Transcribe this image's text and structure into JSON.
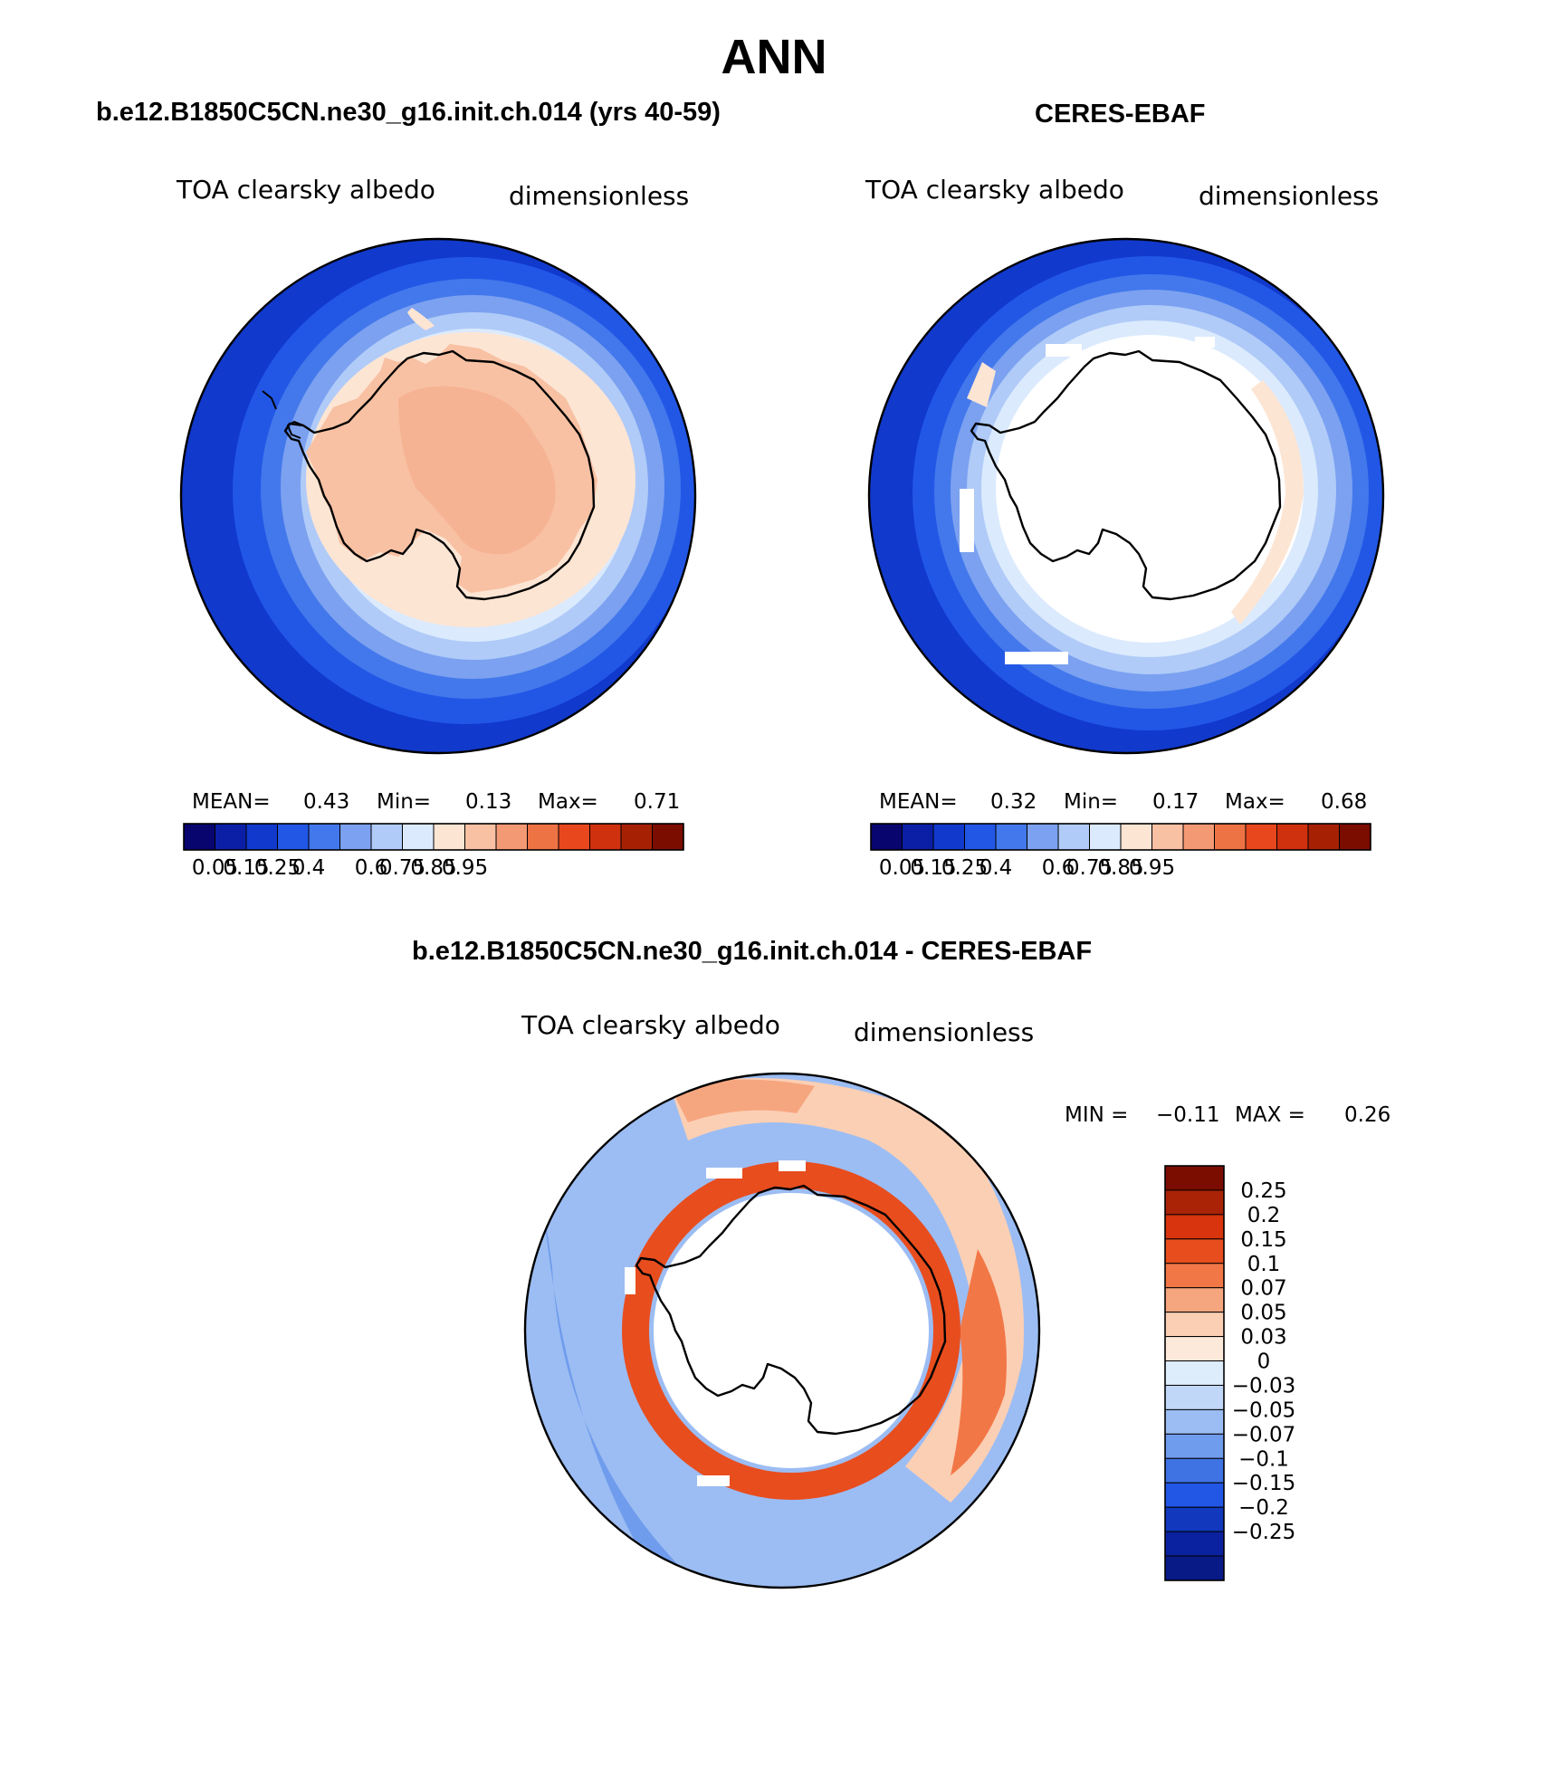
{
  "page_title": "ANN",
  "panels": [
    {
      "heading": "b.e12.B1850C5CN.ne30_g16.init.ch.014 (yrs 40-59)",
      "variable": "TOA clearsky albedo",
      "units": "dimensionless",
      "stats": {
        "mean_label": "MEAN=",
        "mean": "0.43",
        "min_label": "Min=",
        "min": "0.13",
        "max_label": "Max=",
        "max": "0.71"
      }
    },
    {
      "heading": "CERES-EBAF",
      "variable": "TOA clearsky albedo",
      "units": "dimensionless",
      "stats": {
        "mean_label": "MEAN=",
        "mean": "0.32",
        "min_label": "Min=",
        "min": "0.17",
        "max_label": "Max=",
        "max": "0.68"
      }
    },
    {
      "heading": "b.e12.B1850C5CN.ne30_g16.init.ch.014 - CERES-EBAF",
      "variable": "TOA clearsky albedo",
      "units": "dimensionless",
      "stats": {
        "min_label": "MIN =",
        "min": "−0.11",
        "max_label": "MAX =",
        "max": "0.26"
      }
    }
  ],
  "abs_colorbar": {
    "colors": [
      "#08066e",
      "#0a1fa6",
      "#1139cc",
      "#2257e6",
      "#4378ec",
      "#7ba1f0",
      "#b0cbf8",
      "#dbeafd",
      "#fde5d4",
      "#f8c1a3",
      "#f39a75",
      "#ed7244",
      "#e8471e",
      "#cf300d",
      "#a62104",
      "#7a0c00"
    ],
    "tick_labels": [
      "0.05",
      "0.15",
      "0.25",
      "0.4",
      "0.6",
      "0.75",
      "0.85",
      "0.95"
    ]
  },
  "diff_colorbar": {
    "colors_top_to_bottom": [
      "#7a0c00",
      "#aa2306",
      "#d8340d",
      "#e84d1e",
      "#f27746",
      "#f6a67f",
      "#fbcfb4",
      "#fde9da",
      "#deedfb",
      "#c0d7f7",
      "#9cbdf3",
      "#6f9cec",
      "#3f73e3",
      "#2257e6",
      "#1138bd",
      "#0b22a0",
      "#081a85"
    ],
    "tick_labels": [
      "0.25",
      "0.2",
      "0.15",
      "0.1",
      "0.07",
      "0.05",
      "0.03",
      "0",
      "−0.03",
      "−0.05",
      "−0.07",
      "−0.1",
      "−0.15",
      "−0.2",
      "−0.25"
    ]
  }
}
